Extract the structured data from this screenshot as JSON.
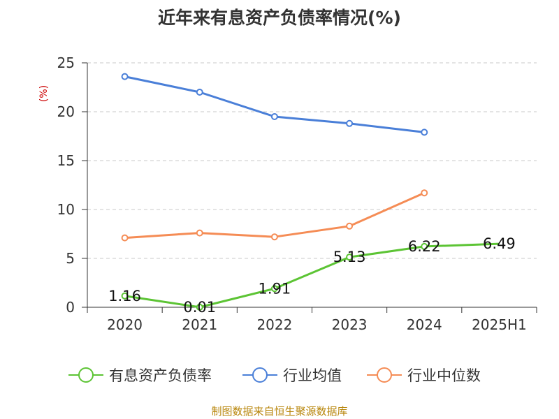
{
  "chart_data": {
    "type": "line",
    "title": "近年来有息资产负债率情况(%)",
    "ylabel": "(%)",
    "xlabel": "",
    "categories": [
      "2020",
      "2021",
      "2022",
      "2023",
      "2024",
      "2025H1"
    ],
    "ylim": [
      0,
      25
    ],
    "yticks": [
      0,
      5,
      10,
      15,
      20,
      25
    ],
    "grid": true,
    "legend_position": "bottom",
    "series": [
      {
        "name": "有息资产负债率",
        "color": "#5cc434",
        "values": [
          1.16,
          0.01,
          1.91,
          5.13,
          6.22,
          6.49
        ],
        "labels": [
          "1.16",
          "0.01",
          "1.91",
          "5.13",
          "6.22",
          "6.49"
        ]
      },
      {
        "name": "行业均值",
        "color": "#4a7fd8",
        "values": [
          23.6,
          22.0,
          19.5,
          18.8,
          17.9,
          null
        ]
      },
      {
        "name": "行业中位数",
        "color": "#f58c55",
        "values": [
          7.1,
          7.6,
          7.2,
          8.3,
          11.7,
          null
        ]
      }
    ]
  },
  "footer": {
    "source": "制图数据来自恒生聚源数据库"
  }
}
